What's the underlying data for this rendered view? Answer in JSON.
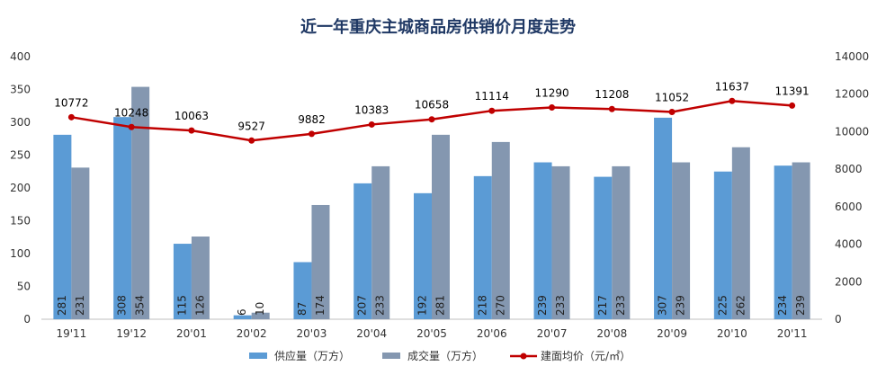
{
  "chart_data": {
    "type": "bar",
    "title": "近一年重庆主城商品房供销价月度走势",
    "categories": [
      "19'11",
      "19'12",
      "20'01",
      "20'02",
      "20'03",
      "20'04",
      "20'05",
      "20'06",
      "20'07",
      "20'08",
      "20'09",
      "20'10",
      "20'11"
    ],
    "series": [
      {
        "name": "供应量（万方）",
        "type": "bar",
        "axis": "left",
        "color": "#5b9bd5",
        "values": [
          281,
          308,
          115,
          6,
          87,
          207,
          192,
          218,
          239,
          217,
          307,
          225,
          234
        ]
      },
      {
        "name": "成交量（万方）",
        "type": "bar",
        "axis": "left",
        "color": "#8497b0",
        "values": [
          231,
          354,
          126,
          10,
          174,
          233,
          281,
          270,
          233,
          233,
          239,
          262,
          239
        ]
      },
      {
        "name": "建面均价（元/㎡）",
        "type": "line",
        "axis": "right",
        "color": "#c00000",
        "values": [
          10772,
          10248,
          10063,
          9527,
          9882,
          10383,
          10658,
          11114,
          11290,
          11208,
          11052,
          11637,
          11391
        ]
      }
    ],
    "ylim_left": [
      0,
      400
    ],
    "yticks_left": [
      0,
      50,
      100,
      150,
      200,
      250,
      300,
      350,
      400
    ],
    "ylim_right": [
      0,
      14000
    ],
    "yticks_right": [
      0,
      2000,
      4000,
      6000,
      8000,
      10000,
      12000,
      14000
    ],
    "legend_position": "bottom",
    "grid": false
  }
}
